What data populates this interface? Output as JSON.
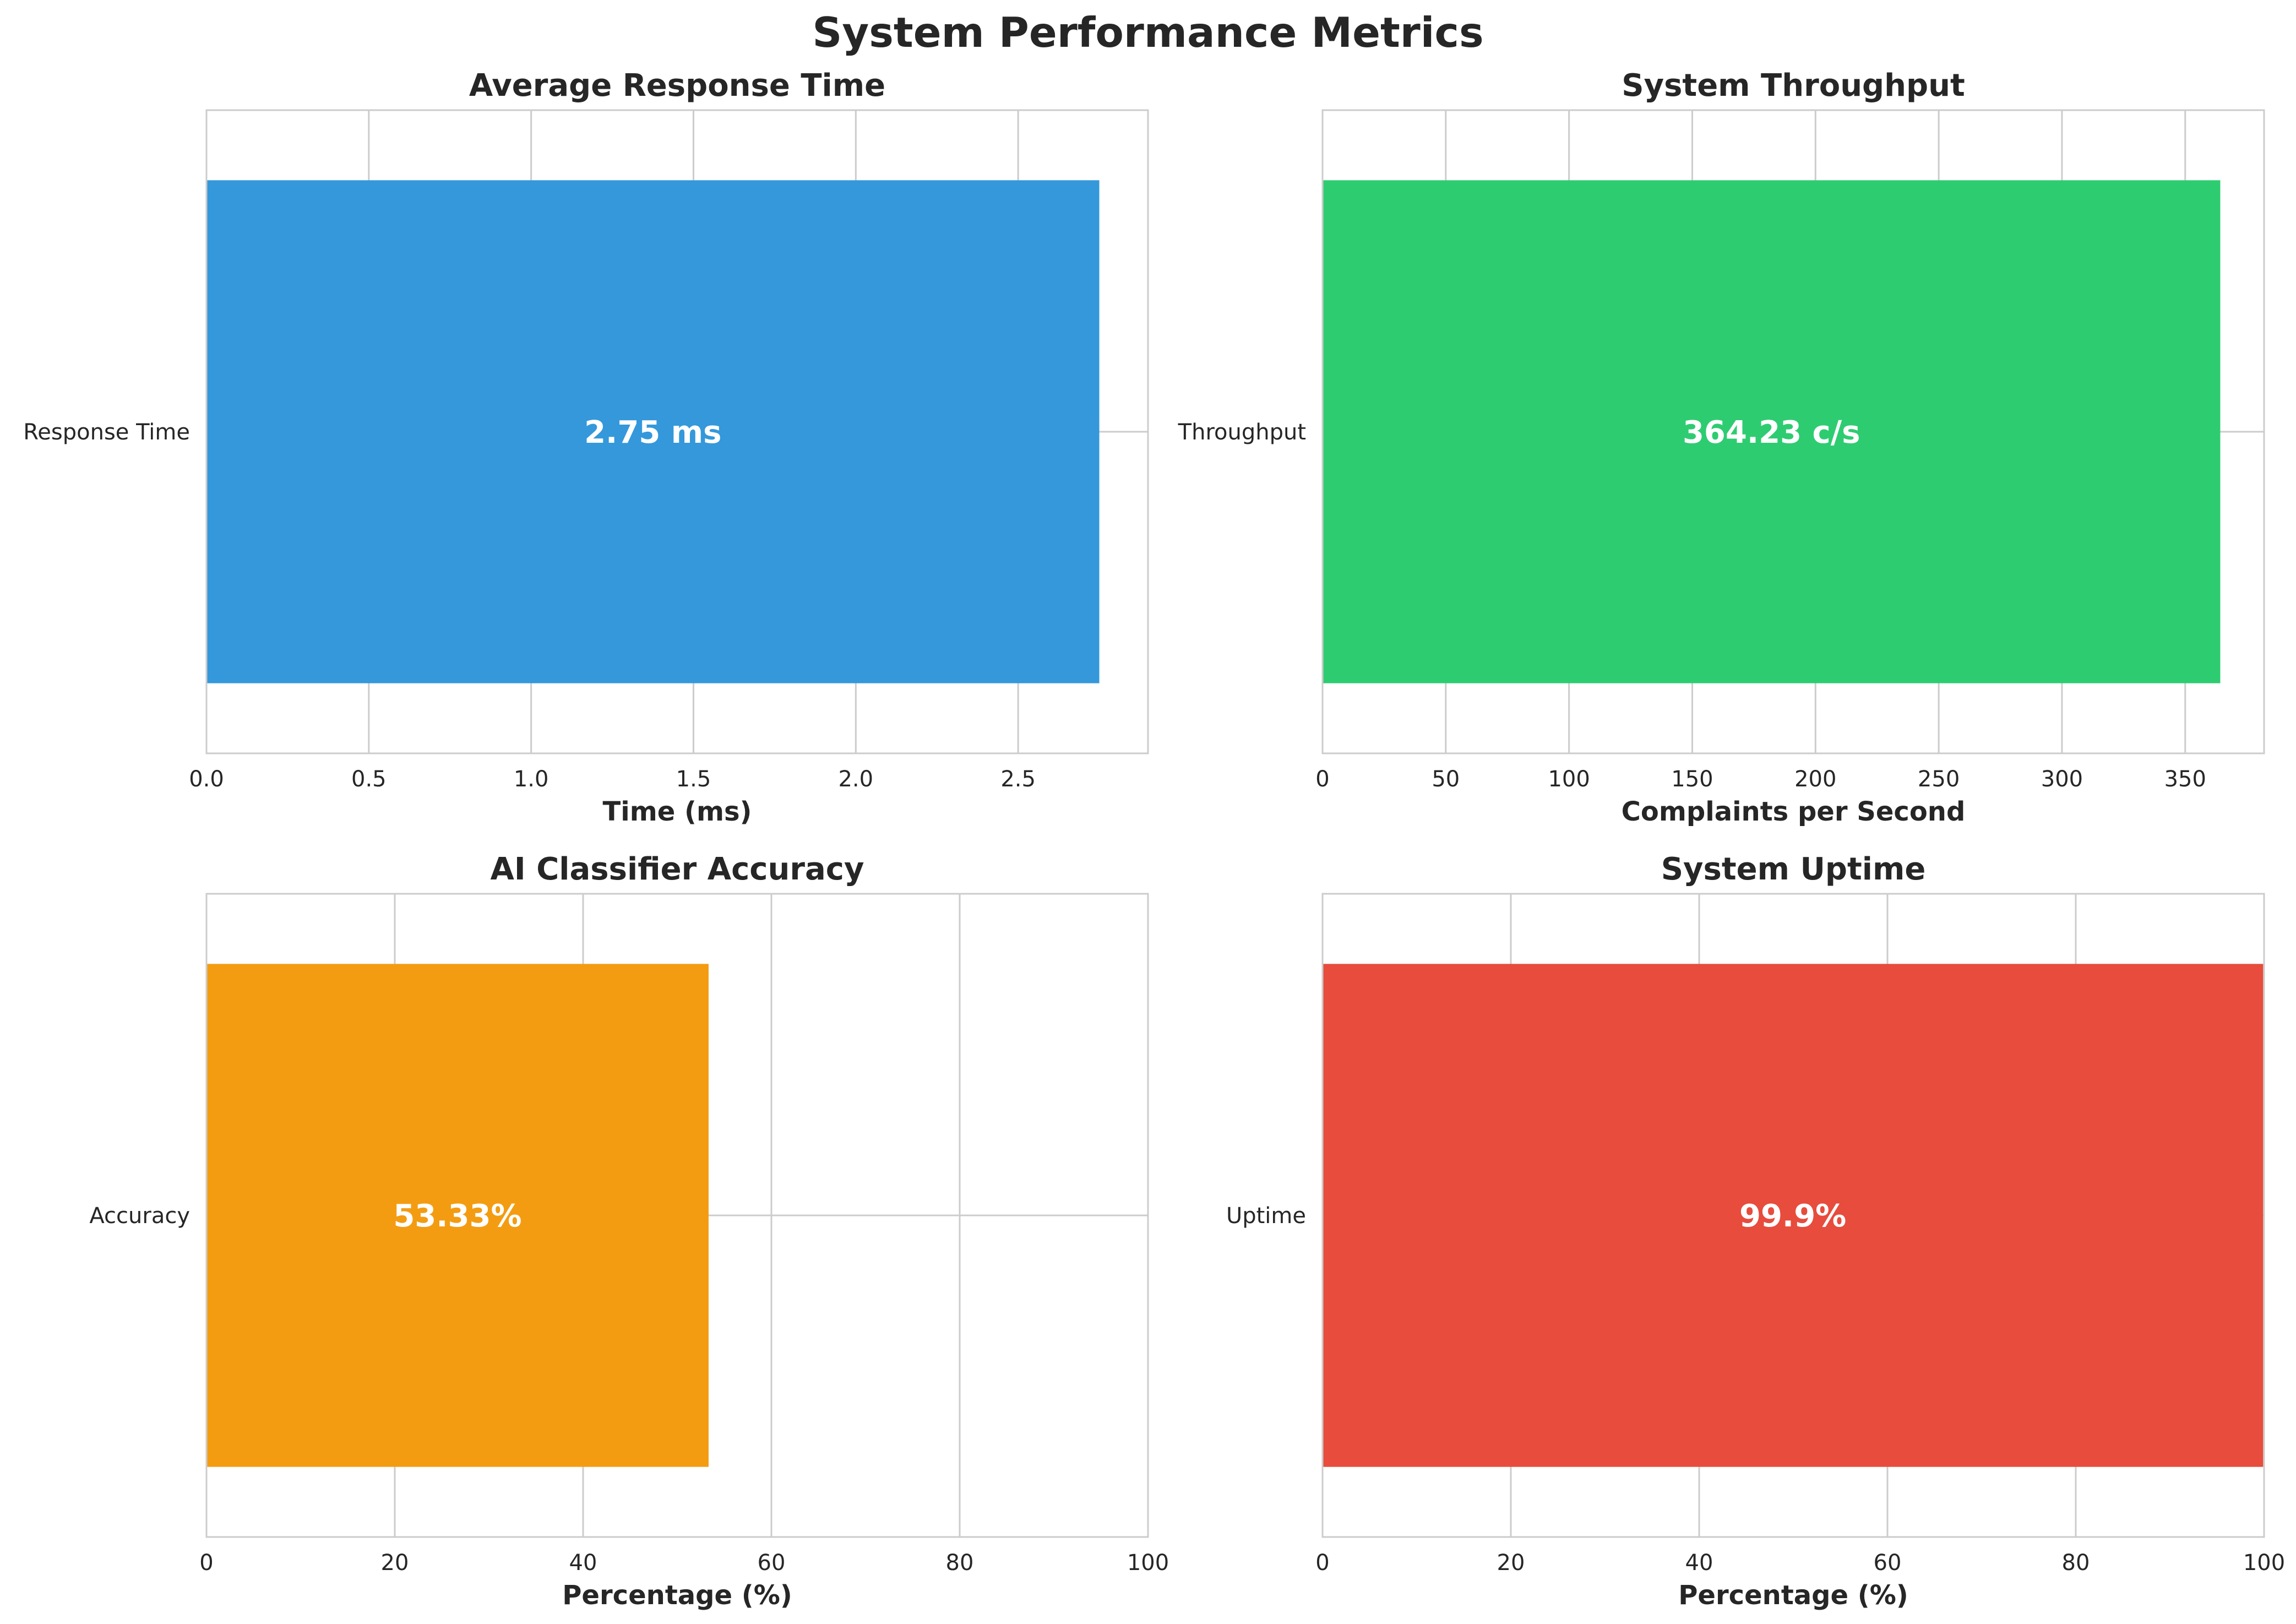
{
  "title": "System Performance Metrics",
  "chart_data": [
    {
      "type": "bar",
      "orientation": "horizontal",
      "title": "Average Response Time",
      "categories": [
        "Response Time"
      ],
      "values": [
        2.75
      ],
      "value_label": "2.75 ms",
      "xlabel": "Time (ms)",
      "ylabel": "",
      "xlim": [
        0,
        2.9
      ],
      "xticks": [
        0,
        0.5,
        1,
        1.5,
        2,
        2.5
      ],
      "xtick_labels": [
        "0.0",
        "0.5",
        "1.0",
        "1.5",
        "2.0",
        "2.5"
      ],
      "color": "#3498db",
      "grid": true
    },
    {
      "type": "bar",
      "orientation": "horizontal",
      "title": "System Throughput",
      "categories": [
        "Throughput"
      ],
      "values": [
        364.23
      ],
      "value_label": "364.23 c/s",
      "xlabel": "Complaints per Second",
      "ylabel": "",
      "xlim": [
        0,
        382
      ],
      "xticks": [
        0,
        50,
        100,
        150,
        200,
        250,
        300,
        350
      ],
      "xtick_labels": [
        "0",
        "50",
        "100",
        "150",
        "200",
        "250",
        "300",
        "350"
      ],
      "color": "#2ecc71",
      "grid": true
    },
    {
      "type": "bar",
      "orientation": "horizontal",
      "title": "AI Classifier Accuracy",
      "categories": [
        "Accuracy"
      ],
      "values": [
        53.33
      ],
      "value_label": "53.33%",
      "xlabel": "Percentage (%)",
      "ylabel": "",
      "xlim": [
        0,
        100
      ],
      "xticks": [
        0,
        20,
        40,
        60,
        80,
        100
      ],
      "xtick_labels": [
        "0",
        "20",
        "40",
        "60",
        "80",
        "100"
      ],
      "color": "#f39c12",
      "grid": true
    },
    {
      "type": "bar",
      "orientation": "horizontal",
      "title": "System Uptime",
      "categories": [
        "Uptime"
      ],
      "values": [
        99.9
      ],
      "value_label": "99.9%",
      "xlabel": "Percentage (%)",
      "ylabel": "",
      "xlim": [
        0,
        100
      ],
      "xticks": [
        0,
        20,
        40,
        60,
        80,
        100
      ],
      "xtick_labels": [
        "0",
        "20",
        "40",
        "60",
        "80",
        "100"
      ],
      "color": "#e74c3c",
      "grid": true
    }
  ]
}
